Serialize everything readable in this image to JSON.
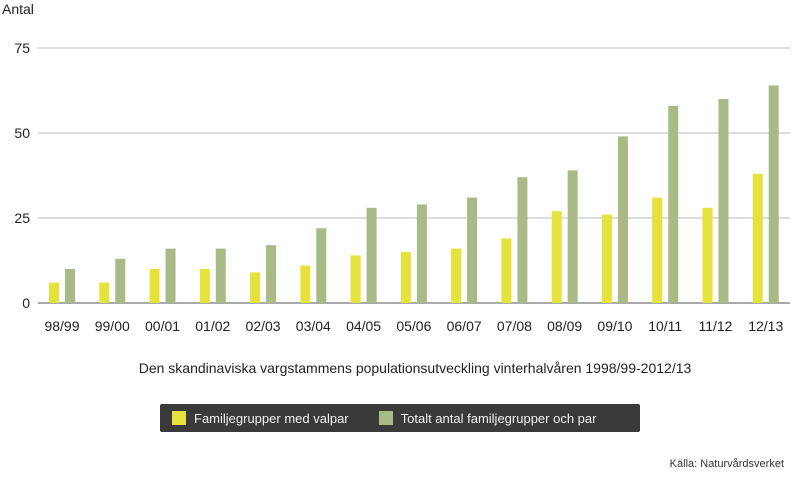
{
  "chart_data": {
    "type": "bar",
    "title": "Den skandinaviska vargstammens populationsutveckling vinterhalvåren 1998/99-2012/13",
    "ylabel": "Antal",
    "xlabel": "",
    "ylim": [
      0,
      75
    ],
    "yticks": [
      0,
      25,
      50,
      75
    ],
    "grid": true,
    "categories": [
      "98/99",
      "99/00",
      "00/01",
      "01/02",
      "02/03",
      "03/04",
      "04/05",
      "05/06",
      "06/07",
      "07/08",
      "08/09",
      "09/10",
      "10/11",
      "11/12",
      "12/13"
    ],
    "series": [
      {
        "name": "Familjegrupper med valpar",
        "color": "#e5e33b",
        "values": [
          6,
          6,
          10,
          10,
          9,
          11,
          14,
          15,
          16,
          19,
          27,
          26,
          31,
          28,
          38
        ]
      },
      {
        "name": "Totalt antal familjegrupper och par",
        "color": "#a9ba87",
        "values": [
          10,
          13,
          16,
          16,
          17,
          22,
          28,
          29,
          31,
          37,
          39,
          49,
          58,
          60,
          64
        ]
      }
    ],
    "legend": "bottom-center",
    "source": "Källa: Naturvårdsverket"
  }
}
